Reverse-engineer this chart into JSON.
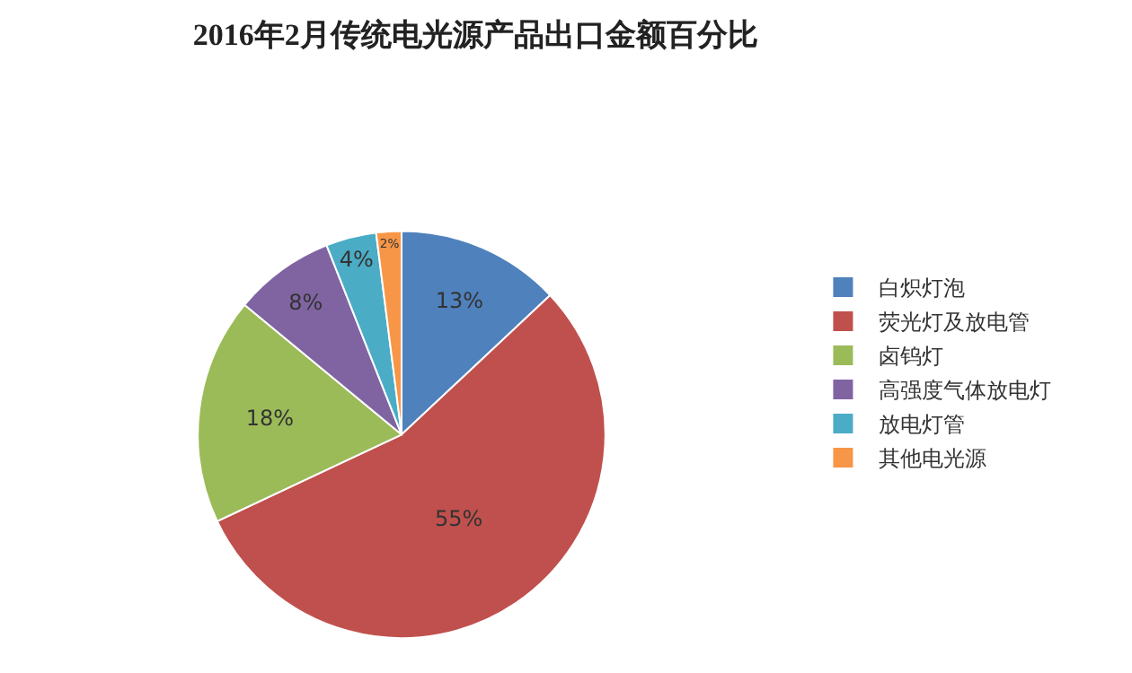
{
  "chart_data": {
    "type": "pie",
    "title": "2016年2月传统电光源产品出口金额百分比",
    "categories": [
      "白炽灯泡",
      "荧光灯及放电管",
      "卤钨灯",
      "高强度气体放电灯",
      "放电灯管",
      "其他电光源"
    ],
    "values": [
      13,
      55,
      18,
      8,
      4,
      2
    ],
    "value_labels": [
      "13%",
      "55%",
      "18%",
      "8%",
      "4%",
      "2%"
    ],
    "colors": [
      "#4f81bd",
      "#c0504d",
      "#9bbb59",
      "#8064a2",
      "#4bacc6",
      "#f79646"
    ],
    "legend": "right"
  }
}
